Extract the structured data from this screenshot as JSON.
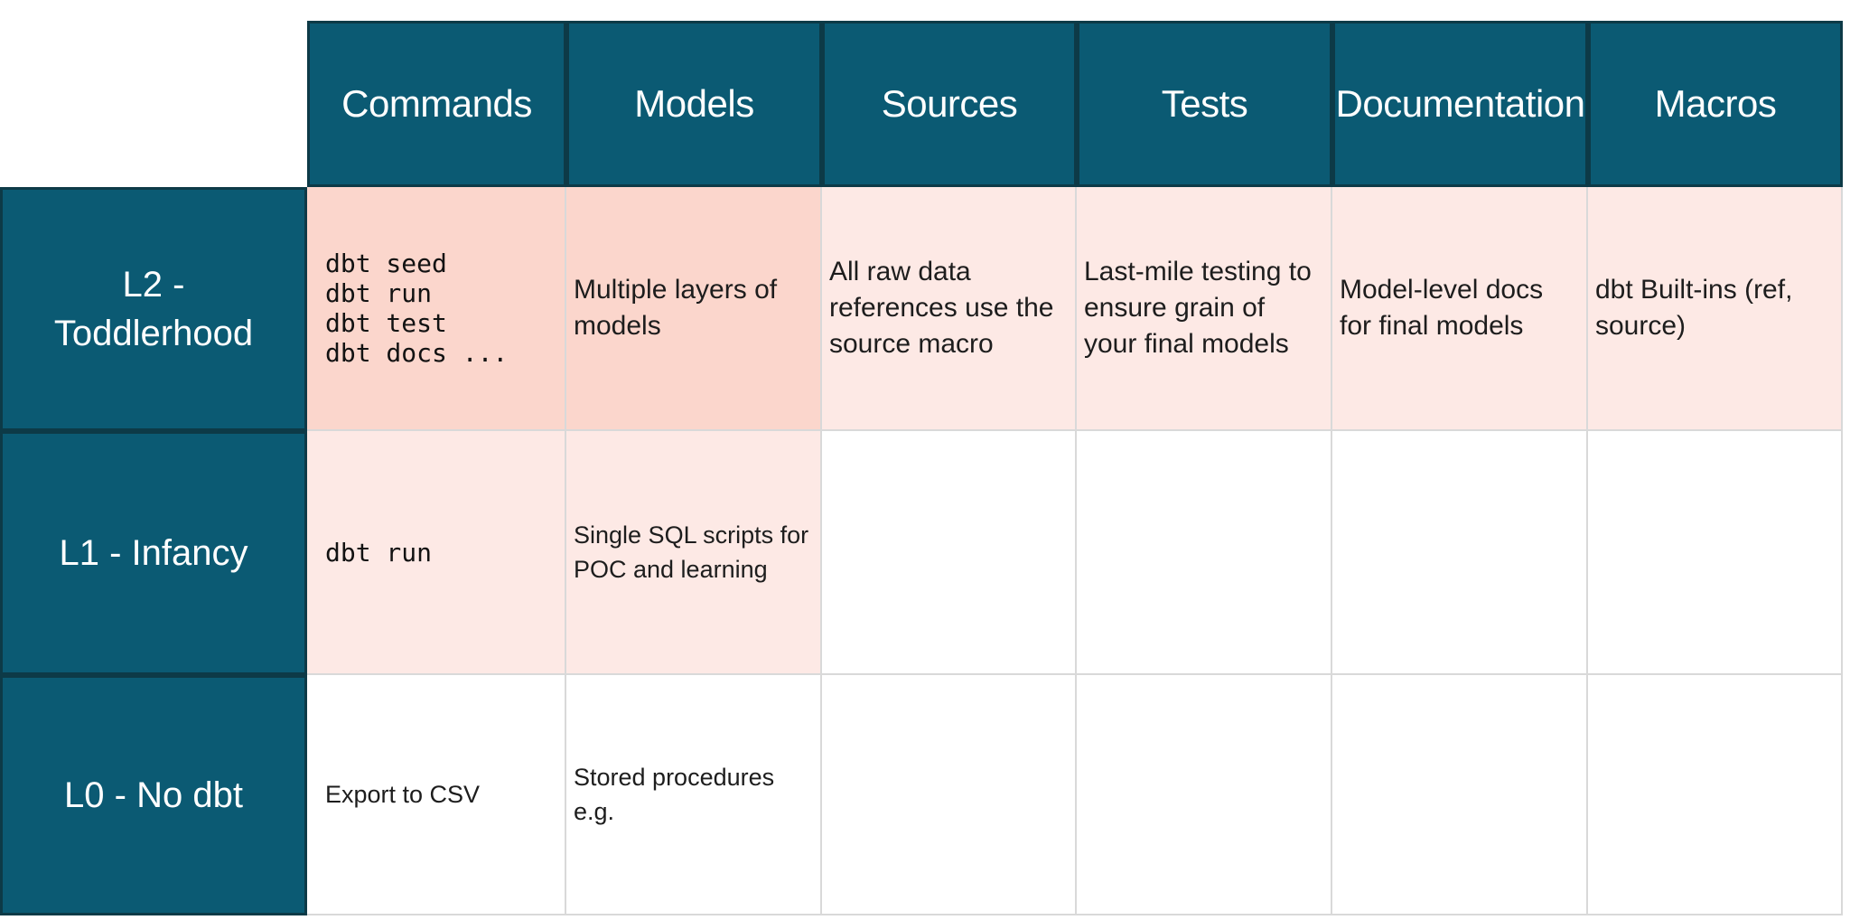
{
  "colors": {
    "teal": "#0b5a73",
    "teal-border": "#0d3a47",
    "pink-strong": "#fbd6cc",
    "pink-soft": "#fde9e5",
    "grid-line": "#d9d9d9",
    "text": "#1d1d1d",
    "header-text": "#ffffff",
    "background": "#ffffff"
  },
  "table": {
    "columns": [
      "Commands",
      "Models",
      "Sources",
      "Tests",
      "Documentation",
      "Macros"
    ],
    "rows": [
      {
        "label": "L2 -\nToddlerhood",
        "cells": [
          {
            "text": "dbt seed\ndbt run\ndbt test\ndbt docs ...",
            "style": "code",
            "background": "pink-strong"
          },
          {
            "text": "Multiple layers of\nmodels",
            "style": "text",
            "background": "pink-strong"
          },
          {
            "text": "All raw data\nreferences use the\nsource macro",
            "style": "text",
            "background": "pink-soft"
          },
          {
            "text": "Last-mile testing to\nensure grain of\nyour final models",
            "style": "text",
            "background": "pink-soft"
          },
          {
            "text": "Model-level docs\nfor final models",
            "style": "text",
            "background": "pink-soft"
          },
          {
            "text": "dbt Built-ins (ref,\nsource)",
            "style": "text",
            "background": "pink-soft"
          }
        ]
      },
      {
        "label": "L1 - Infancy",
        "cells": [
          {
            "text": "dbt run",
            "style": "code",
            "background": "pink-soft"
          },
          {
            "text": "Single SQL scripts for\nPOC and learning",
            "style": "text-small",
            "background": "pink-soft"
          },
          {
            "text": "",
            "style": "text",
            "background": "white"
          },
          {
            "text": "",
            "style": "text",
            "background": "white"
          },
          {
            "text": "",
            "style": "text",
            "background": "white"
          },
          {
            "text": "",
            "style": "text",
            "background": "white"
          }
        ]
      },
      {
        "label": "L0 - No dbt",
        "cells": [
          {
            "text": "Export to CSV",
            "style": "text-small",
            "background": "white"
          },
          {
            "text": "Stored procedures\ne.g.",
            "style": "text-small",
            "background": "white"
          },
          {
            "text": "",
            "style": "text",
            "background": "white"
          },
          {
            "text": "",
            "style": "text",
            "background": "white"
          },
          {
            "text": "",
            "style": "text",
            "background": "white"
          },
          {
            "text": "",
            "style": "text",
            "background": "white"
          }
        ]
      }
    ]
  }
}
